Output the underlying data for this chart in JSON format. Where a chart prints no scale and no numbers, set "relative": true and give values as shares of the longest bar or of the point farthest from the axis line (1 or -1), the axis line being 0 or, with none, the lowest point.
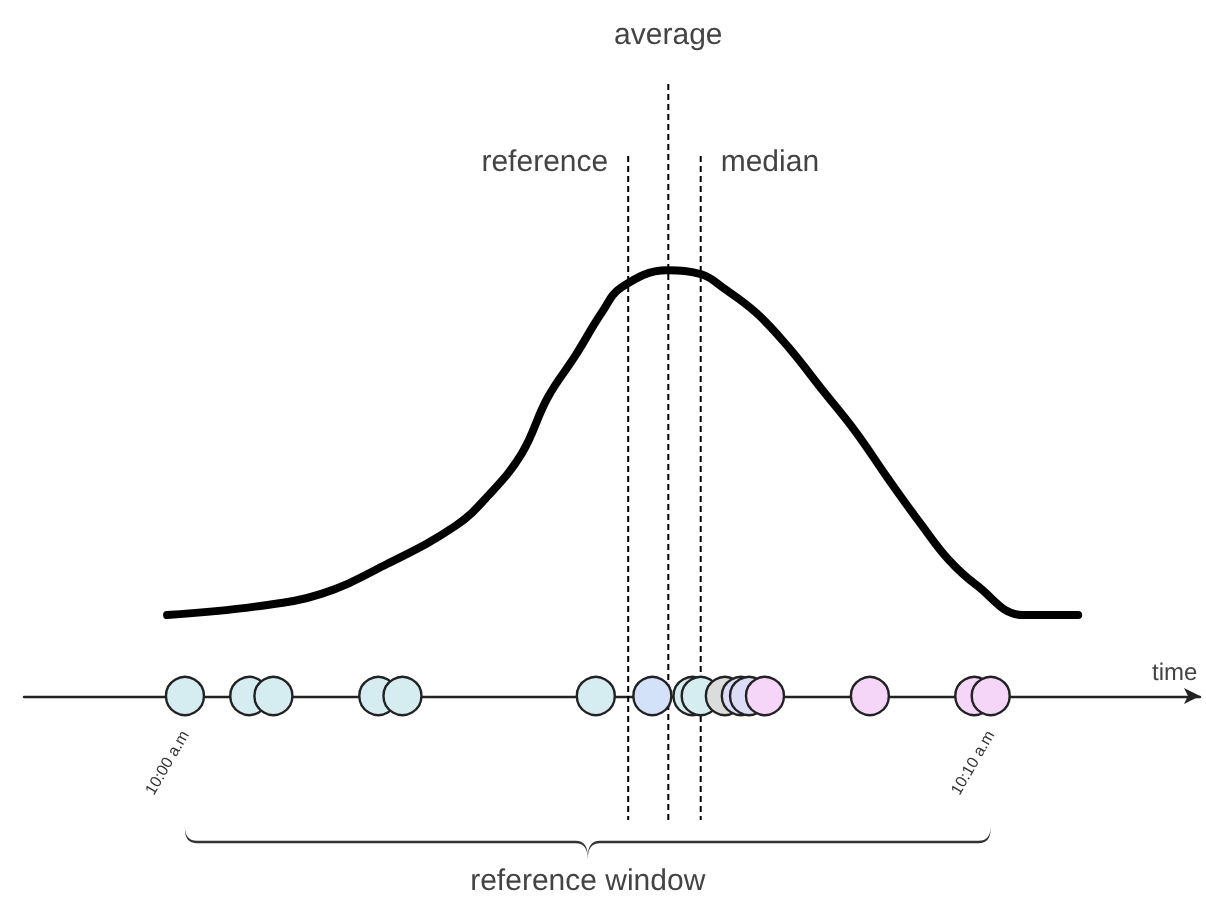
{
  "chart_data": {
    "type": "line",
    "relative": true,
    "xlabel": "time",
    "xlim": [
      9.9667,
      10.21
    ],
    "xticks": [
      {
        "value": 10,
        "label": "10:00 a.m"
      },
      {
        "value": 10.16667,
        "label": "10:10 a.m"
      }
    ],
    "series": [
      {
        "color": "#000000",
        "marker": "none",
        "x": [
          9.9963,
          10.0145,
          10.0282,
          10.0418,
          10.056,
          10.0627,
          10.0697,
          10.075,
          10.0808,
          10.0862,
          10.0903,
          10.0998,
          10.107,
          10.1112,
          10.1182,
          10.1248,
          10.1318,
          10.1388,
          10.1455,
          10.1525,
          10.158,
          10.1638,
          10.1733,
          10.1848
        ],
        "values": [
          0.19,
          0.21,
          0.24,
          0.31,
          0.4,
          0.47,
          0.57,
          0.7,
          0.8,
          0.9,
          0.96,
          1,
          0.99,
          0.96,
          0.9,
          0.82,
          0.72,
          0.62,
          0.51,
          0.4,
          0.32,
          0.26,
          0.19,
          0.19
        ]
      },
      {
        "type": "scatter",
        "marker": "circle",
        "x": [
          10,
          10.0133,
          10.0183,
          10.04,
          10.045,
          10.085,
          10.0967,
          10.105,
          10.1067,
          10.1117,
          10.115,
          10.1167,
          10.12,
          10.1417,
          10.1633,
          10.1667
        ],
        "values": [
          0,
          0,
          0,
          0,
          0,
          0,
          0,
          0,
          0,
          0,
          0,
          0,
          0,
          0,
          0,
          0
        ],
        "colors": [
          "#d5ecf0",
          "#d5ecf0",
          "#d5ecf0",
          "#d5ecf0",
          "#d5ecf0",
          "#d5ecf0",
          "#d3e1f9",
          "#d5ecf0",
          "#d5ecf0",
          "#dcdcdc",
          "#dcdcf8",
          "#dcdcf8",
          "#f5d5f8",
          "#f5d5f8",
          "#f5d5f8",
          "#f5d5f8"
        ]
      }
    ],
    "ref_lines": [
      {
        "axis": "x",
        "value": 10.0917,
        "label": "reference",
        "color": "#000000",
        "line_style": "dashed"
      },
      {
        "axis": "x",
        "value": 10.1,
        "label": "average",
        "color": "#000000",
        "line_style": "dashed"
      },
      {
        "axis": "x",
        "value": 10.1067,
        "label": "median",
        "color": "#000000",
        "line_style": "dashed"
      }
    ],
    "annotations": [
      "reference window"
    ]
  }
}
